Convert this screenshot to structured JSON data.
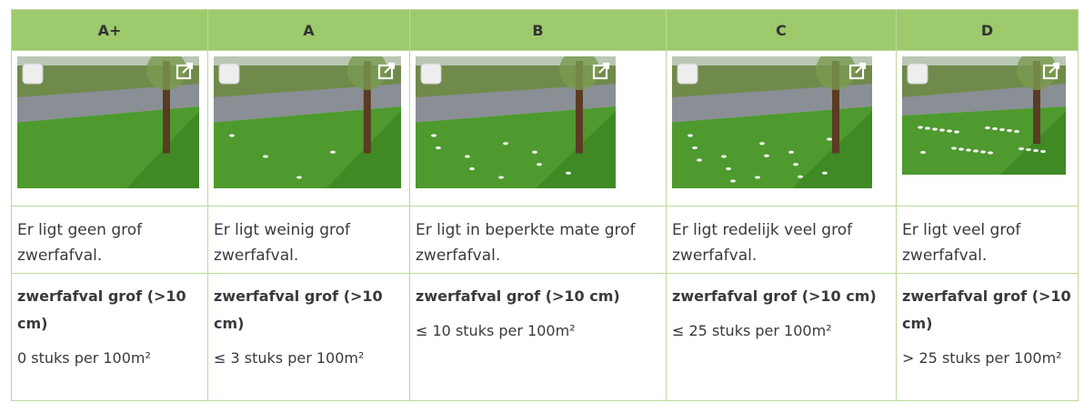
{
  "columns": [
    {
      "grade": "A+",
      "description": "Er ligt geen grof zwerfafval.",
      "criterion": "zwerfafval grof (>10 cm)",
      "norm": "0 stuks per 100m²"
    },
    {
      "grade": "A",
      "description": "Er ligt weinig grof zwerfafval.",
      "criterion": "zwerfafval grof (>10 cm)",
      "norm": "≤ 3 stuks per 100m²"
    },
    {
      "grade": "B",
      "description": "Er ligt in beperkte mate grof zwerfafval.",
      "criterion": "zwerfafval grof (>10 cm)",
      "norm": "≤ 10 stuks per 100m²"
    },
    {
      "grade": "C",
      "description": "Er ligt redelijk veel grof zwerfafval.",
      "criterion": "zwerfafval grof (>10 cm)",
      "norm": "≤ 25 stuks per 100m²"
    },
    {
      "grade": "D",
      "description": "Er ligt veel grof zwerfafval.",
      "criterion": "zwerfafval grof (>10 cm)",
      "norm": "> 25 stuks per 100m²"
    }
  ]
}
